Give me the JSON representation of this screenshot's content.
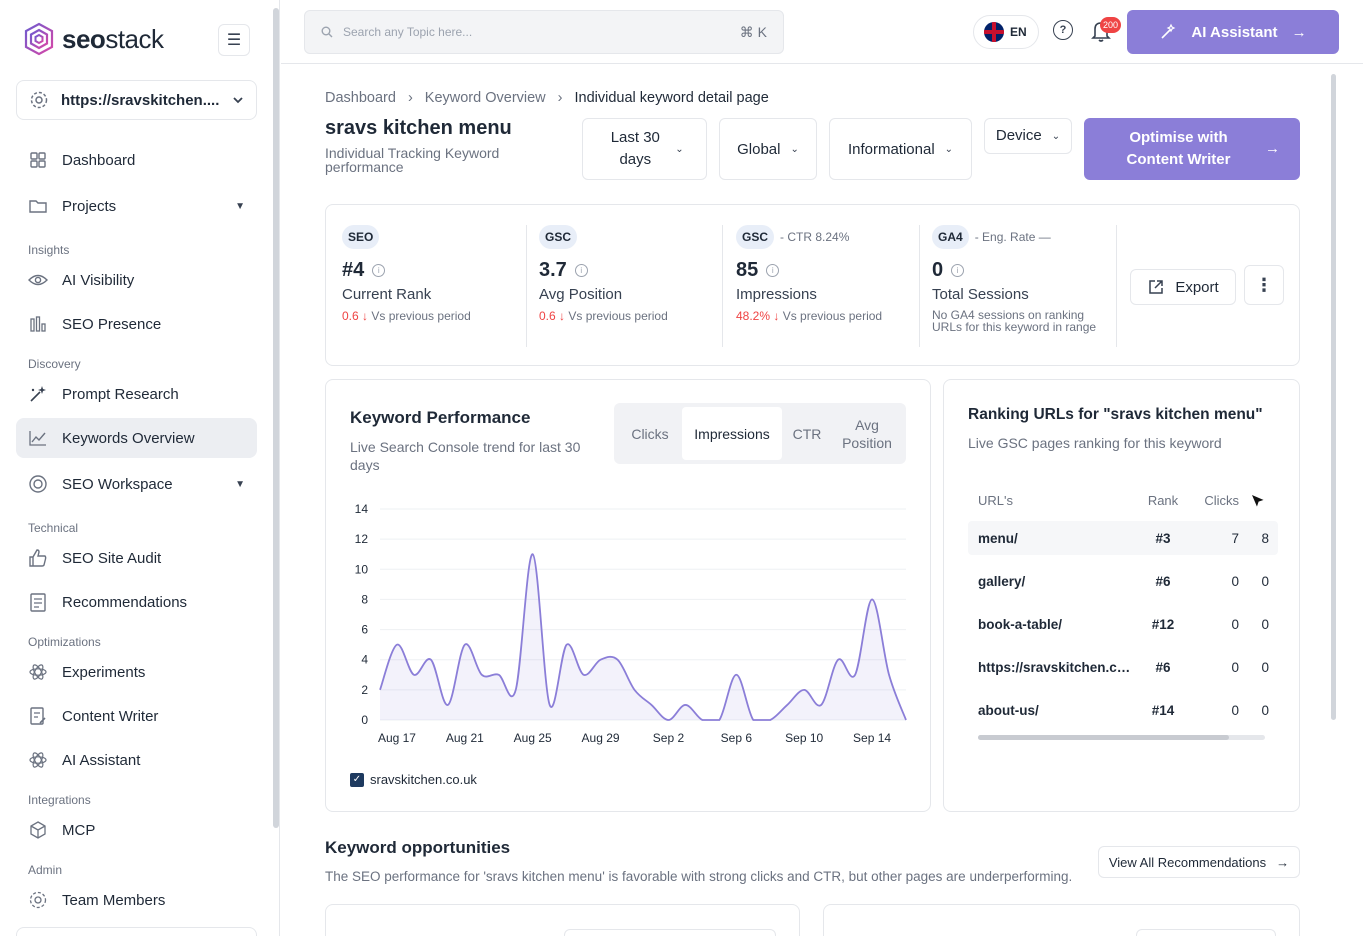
{
  "brand": {
    "name_bold": "seo",
    "name_light": "stack",
    "accent": "#8b7ed8"
  },
  "sidebar": {
    "site": "https://sravskitchen....",
    "items": [
      {
        "label": "Dashboard",
        "icon": "grid-icon"
      },
      {
        "label": "Projects",
        "icon": "folder-icon"
      },
      {
        "label": "AI Visibility",
        "icon": "eye-icon"
      },
      {
        "label": "SEO Presence",
        "icon": "bar-chart-icon"
      },
      {
        "label": "Prompt Research",
        "icon": "sparkle-icon"
      },
      {
        "label": "Keywords Overview",
        "icon": "trend-icon"
      },
      {
        "label": "SEO Workspace",
        "icon": "target-icon"
      },
      {
        "label": "SEO Site Audit",
        "icon": "thumb-icon"
      },
      {
        "label": "Recommendations",
        "icon": "doc-icon"
      },
      {
        "label": "Experiments",
        "icon": "atom-icon"
      },
      {
        "label": "Content Writer",
        "icon": "pen-doc-icon"
      },
      {
        "label": "AI Assistant",
        "icon": "atom-icon"
      },
      {
        "label": "MCP",
        "icon": "cube-icon"
      },
      {
        "label": "Team Members",
        "icon": "team-icon"
      }
    ],
    "sections": [
      "Insights",
      "Discovery",
      "Technical",
      "Optimizations",
      "Integrations",
      "Admin"
    ]
  },
  "topbar": {
    "search_placeholder": "Search any Topic here...",
    "shortcut": "⌘ K",
    "language": "EN",
    "notifications": "200",
    "ai_button": "AI Assistant"
  },
  "breadcrumb": [
    "Dashboard",
    "Keyword Overview",
    "Individual keyword detail page"
  ],
  "page": {
    "title": "sravs kitchen menu",
    "subtitle": "Individual Tracking Keyword performance"
  },
  "filters": {
    "period": "Last 30 days",
    "region": "Global",
    "intent": "Informational",
    "device": "Device",
    "optimise": "Optimise with Content Writer"
  },
  "metrics": [
    {
      "badge": "SEO",
      "note": "",
      "value": "#4",
      "label": "Current Rank",
      "delta": "0.6 ↓",
      "delta_text": "Vs previous period"
    },
    {
      "badge": "GSC",
      "note": "",
      "value": "3.7",
      "label": "Avg Position",
      "delta": "0.6 ↓",
      "delta_text": "Vs previous period"
    },
    {
      "badge": "GSC",
      "note": "- CTR 8.24%",
      "value": "85",
      "label": "Impressions",
      "delta": "48.2% ↓",
      "delta_text": "Vs previous period"
    },
    {
      "badge": "GA4",
      "note": "- Eng. Rate —",
      "value": "0",
      "label": "Total Sessions",
      "delta": "",
      "delta_text": "No GA4 sessions on ranking URLs for this keyword in range"
    }
  ],
  "actions": {
    "export": "Export"
  },
  "performance": {
    "title": "Keyword Performance",
    "subtitle": "Live Search Console trend for last 30 days",
    "tabs": [
      "Clicks",
      "Impressions",
      "CTR",
      "Avg Position"
    ],
    "active_tab": "Impressions",
    "legend": "sravskitchen.co.uk"
  },
  "chart_data": {
    "type": "area",
    "x": [
      "Aug 16",
      "Aug 17",
      "Aug 18",
      "Aug 19",
      "Aug 20",
      "Aug 21",
      "Aug 22",
      "Aug 23",
      "Aug 24",
      "Aug 25",
      "Aug 26",
      "Aug 27",
      "Aug 28",
      "Aug 29",
      "Aug 30",
      "Aug 31",
      "Sep 1",
      "Sep 2",
      "Sep 3",
      "Sep 4",
      "Sep 5",
      "Sep 6",
      "Sep 7",
      "Sep 8",
      "Sep 9",
      "Sep 10",
      "Sep 11",
      "Sep 12",
      "Sep 13",
      "Sep 14",
      "Sep 15",
      "Sep 16"
    ],
    "xticks": [
      "Aug 17",
      "Aug 21",
      "Aug 25",
      "Aug 29",
      "Sep 2",
      "Sep 6",
      "Sep 10",
      "Sep 14"
    ],
    "series": [
      {
        "name": "sravskitchen.co.uk",
        "values": [
          2,
          5,
          3,
          4,
          1,
          5,
          3,
          3,
          2,
          11,
          1,
          5,
          3,
          4,
          4,
          2,
          1,
          0,
          1,
          0,
          0,
          3,
          0,
          0,
          1,
          2,
          1,
          4,
          3,
          8,
          3,
          0
        ]
      }
    ],
    "ylim": [
      0,
      14
    ],
    "yticks": [
      0,
      2,
      4,
      6,
      8,
      10,
      12,
      14
    ],
    "color": "#8b7ed8",
    "grid": true
  },
  "ranking": {
    "title": "Ranking URLs for \"sravs kitchen menu\"",
    "subtitle": "Live GSC pages ranking for this keyword",
    "headers": [
      "URL's",
      "Rank",
      "Clicks"
    ],
    "rows": [
      {
        "url": "menu/",
        "rank": "#3",
        "clicks": "7",
        "imp": "8"
      },
      {
        "url": "gallery/",
        "rank": "#6",
        "clicks": "0",
        "imp": "0"
      },
      {
        "url": "book-a-table/",
        "rank": "#12",
        "clicks": "0",
        "imp": "0"
      },
      {
        "url": "https://sravskitchen.co...",
        "rank": "#6",
        "clicks": "0",
        "imp": "0"
      },
      {
        "url": "about-us/",
        "rank": "#14",
        "clicks": "0",
        "imp": "0"
      }
    ]
  },
  "opportunities": {
    "title": "Keyword opportunities",
    "subtitle": "The SEO performance for 'sravs kitchen menu' is favorable with strong clicks and CTR, but other pages are underperforming.",
    "view_all": "View All Recommendations"
  }
}
